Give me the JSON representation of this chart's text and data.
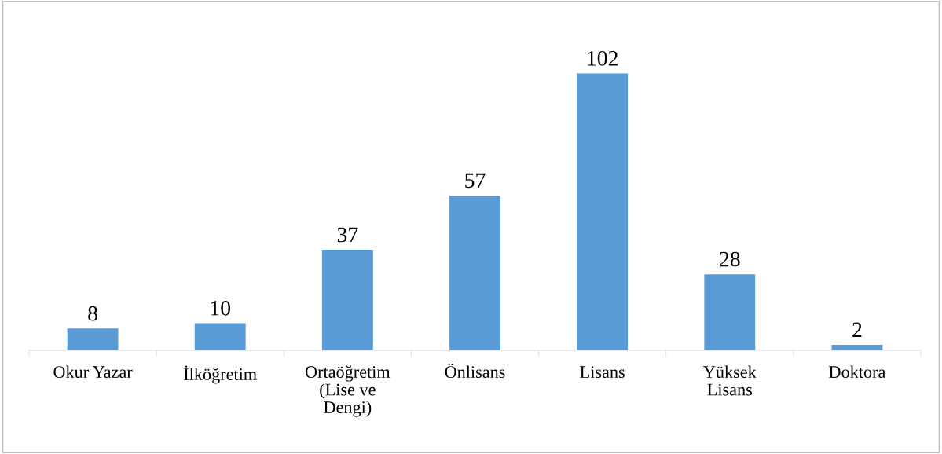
{
  "chart_data": {
    "type": "bar",
    "categories": [
      "Okur Yazar",
      "İlköğretim",
      "Ortaöğretim\n(Lise ve\nDengi)",
      "Önlisans",
      "Lisans",
      "Yüksek\nLisans",
      "Doktora"
    ],
    "values": [
      8,
      10,
      37,
      57,
      102,
      28,
      2
    ],
    "color": "#5b9bd5",
    "data_labels": true,
    "grid": false,
    "legend": false
  }
}
